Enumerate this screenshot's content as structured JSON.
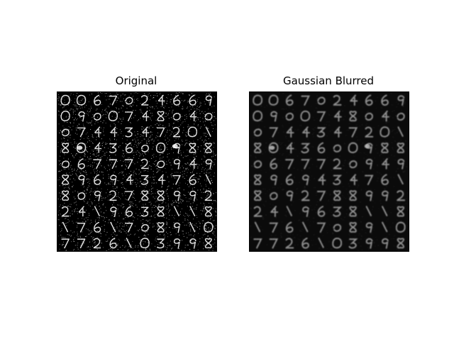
{
  "figure": {
    "panels": [
      {
        "title": "Original",
        "kind": "noisy",
        "colors": {
          "background": "#000000",
          "ink": "#ffffff"
        }
      },
      {
        "title": "Gaussian Blurred",
        "kind": "blurred",
        "colors": {
          "background": "#0b0b0b",
          "ink": "#bdbdbd"
        }
      }
    ],
    "grid": {
      "rows": 10,
      "cols": 10
    },
    "content": "tiled grayscale handwritten-digit images"
  }
}
